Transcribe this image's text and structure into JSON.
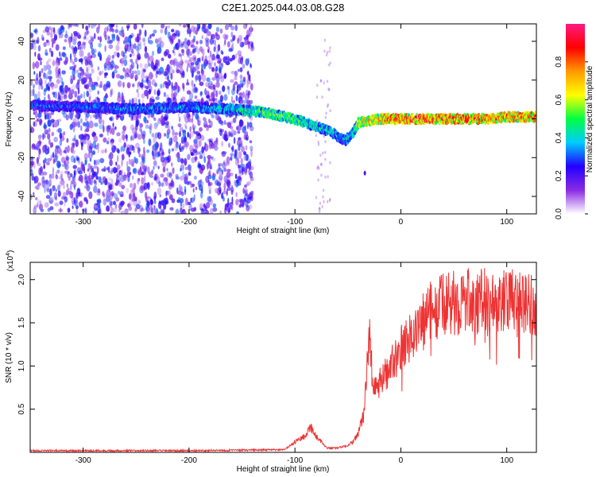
{
  "title": "C2E1.2025.044.03.08.G28",
  "chart_data": [
    {
      "type": "heatmap",
      "name": "spectrogram",
      "xlabel": "Height of straight line (km)",
      "ylabel": "Frequency (Hz)",
      "xlim": [
        -350,
        128
      ],
      "ylim": [
        -49,
        49
      ],
      "xticks": [
        "-300",
        "-200",
        "-100",
        "0",
        "100"
      ],
      "xtick_values": [
        -300,
        -200,
        -100,
        0,
        100
      ],
      "yticks": [
        "-40",
        "-20",
        "0",
        "20",
        "40"
      ],
      "ytick_values": [
        -40,
        -20,
        0,
        20,
        40
      ],
      "colorbar": {
        "label": "Normalized spectral amplitude",
        "range": [
          0,
          1
        ],
        "ticks": [
          "0.0",
          "0.2",
          "0.4",
          "0.6",
          "0.8"
        ],
        "tick_values": [
          0.0,
          0.2,
          0.4,
          0.6,
          0.8
        ],
        "colors": [
          "#ffffff",
          "#8a2be2",
          "#2200ff",
          "#00ccff",
          "#00ff40",
          "#ffff00",
          "#ff9900",
          "#ff0000",
          "#ff1a80"
        ]
      },
      "noise_region": {
        "x_range": [
          -350,
          -140
        ],
        "amplitude": 0.15
      },
      "ridge": {
        "x": [
          -350,
          -300,
          -250,
          -200,
          -160,
          -140,
          -125,
          -110,
          -95,
          -80,
          -65,
          -57,
          -52,
          -45,
          -40,
          -30,
          -20,
          -10,
          0,
          20,
          40,
          60,
          80,
          100,
          128
        ],
        "y": [
          7,
          6,
          5,
          6,
          5,
          4,
          3,
          1,
          -1,
          -4,
          -7,
          -10,
          -11,
          -7,
          -2,
          -1,
          0,
          0,
          0,
          0,
          0,
          0,
          0,
          1,
          1
        ],
        "amplitude": [
          0.35,
          0.35,
          0.4,
          0.4,
          0.45,
          0.55,
          0.6,
          0.6,
          0.55,
          0.5,
          0.45,
          0.4,
          0.45,
          0.5,
          0.7,
          0.75,
          0.8,
          0.9,
          0.9,
          0.95,
          0.9,
          0.9,
          0.85,
          0.85,
          0.85
        ]
      }
    },
    {
      "type": "line",
      "name": "snr",
      "xlabel": "Height of straight line (km)",
      "ylabel": "SNR (10 * v/v)",
      "scale_label": "(x10",
      "scale_exp": "4",
      "scale_close": ")",
      "xlim": [
        -350,
        128
      ],
      "ylim": [
        0,
        2.2
      ],
      "xticks": [
        "-300",
        "-200",
        "-100",
        "0",
        "100"
      ],
      "xtick_values": [
        -300,
        -200,
        -100,
        0,
        100
      ],
      "yticks": [
        "0.5",
        "1.0",
        "1.5",
        "2.0"
      ],
      "ytick_values": [
        0.5,
        1.0,
        1.5,
        2.0
      ],
      "color": "#ee3333",
      "series": [
        {
          "x": [
            -350,
            -200,
            -110,
            -100,
            -90,
            -85,
            -80,
            -70,
            -60,
            -50,
            -45,
            -40,
            -35,
            -32,
            -30,
            -28,
            -25,
            -20,
            -10,
            0,
            10,
            20,
            30,
            40,
            60,
            80,
            100,
            128
          ],
          "values": [
            0.02,
            0.02,
            0.03,
            0.12,
            0.2,
            0.3,
            0.18,
            0.05,
            0.05,
            0.08,
            0.12,
            0.22,
            0.45,
            1.0,
            1.4,
            1.0,
            0.7,
            0.8,
            1.0,
            1.2,
            1.35,
            1.5,
            1.65,
            1.7,
            1.75,
            1.75,
            1.75,
            1.72
          ]
        }
      ]
    }
  ]
}
